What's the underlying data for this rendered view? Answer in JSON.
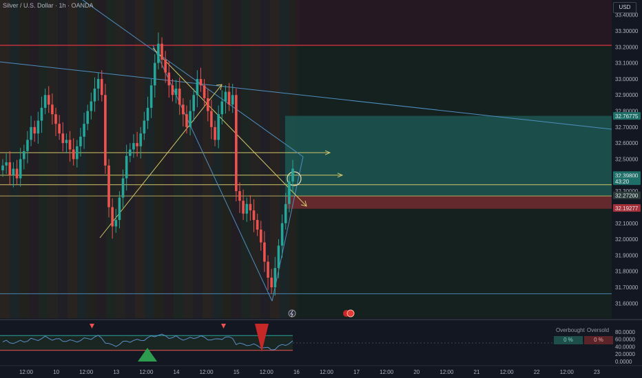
{
  "header": {
    "title": "Silver / U.S. Dollar · 1h · OANDA",
    "currency": "USD"
  },
  "colors": {
    "background": "#131722",
    "up": "#26a69a",
    "down": "#ef5350",
    "resistance_line": "#f23645",
    "support_line": "#d4c76a",
    "trendline": "#4f8fbf",
    "target_zone": "#1d5e5a",
    "stop_zone": "#6b2a2f"
  },
  "price_axis": {
    "ticks": [
      "33.40000",
      "33.30000",
      "33.20000",
      "33.10000",
      "33.00000",
      "32.90000",
      "32.80000",
      "32.70000",
      "32.60000",
      "32.50000",
      "32.40000",
      "32.30000",
      "32.10000",
      "32.00000",
      "31.90000",
      "31.80000",
      "31.70000",
      "31.60000"
    ],
    "tags": [
      {
        "text": "32.76775",
        "bg": "#1e6f68"
      },
      {
        "text": "32.39800",
        "bg": "#1e6f68"
      },
      {
        "text": "43:20",
        "bg": "#1e6f68"
      },
      {
        "text": "32.27200",
        "bg": "#2a3b3a"
      },
      {
        "text": "32.19277",
        "bg": "#a4303a"
      }
    ]
  },
  "time_axis": {
    "labels": [
      "12:00",
      "10",
      "12:00",
      "13",
      "12:00",
      "14",
      "12:00",
      "15",
      "12:00",
      "16",
      "12:00",
      "17",
      "12:00",
      "20",
      "12:00",
      "21",
      "12:00",
      "22",
      "12:00",
      "23"
    ]
  },
  "rsi": {
    "ticks": [
      "80.0000",
      "60.0000",
      "40.0000",
      "20.0000",
      "0.0000"
    ],
    "overbought_label": "Overbought",
    "oversold_label": "Oversold",
    "overbought_value": "0 %",
    "oversold_value": "0 %"
  },
  "chart_data": {
    "type": "candlestick",
    "symbol": "Silver / U.S. Dollar",
    "interval": "1h",
    "ylim": [
      31.55,
      33.45
    ],
    "levels": {
      "resistance": 33.21,
      "entry_upper": 32.54,
      "entry": 32.4,
      "support_lower": 32.34,
      "target": 32.77,
      "stop_upper": 32.27,
      "stop_lower": 32.19,
      "swing_low": 31.66
    },
    "closes": [
      32.46,
      32.48,
      32.4,
      32.44,
      32.38,
      32.5,
      32.55,
      32.62,
      32.7,
      32.66,
      32.74,
      32.82,
      32.9,
      32.84,
      32.78,
      32.72,
      32.66,
      32.6,
      32.62,
      32.56,
      32.5,
      32.58,
      32.64,
      32.72,
      32.8,
      32.86,
      32.94,
      33.0,
      32.9,
      32.46,
      32.2,
      32.08,
      32.12,
      32.26,
      32.38,
      32.52,
      32.56,
      32.6,
      32.58,
      32.66,
      32.74,
      32.82,
      32.96,
      33.1,
      33.22,
      33.12,
      33.04,
      32.96,
      32.9,
      32.94,
      32.84,
      32.78,
      32.7,
      32.8,
      32.9,
      33.0,
      32.96,
      32.88,
      32.8,
      32.7,
      32.62,
      32.78,
      32.86,
      32.92,
      32.84,
      32.9,
      32.3,
      32.24,
      32.16,
      32.22,
      32.18,
      32.12,
      32.06,
      31.98,
      31.86,
      31.76,
      31.7,
      31.82,
      31.96,
      32.1,
      32.22,
      32.36,
      32.44
    ]
  }
}
